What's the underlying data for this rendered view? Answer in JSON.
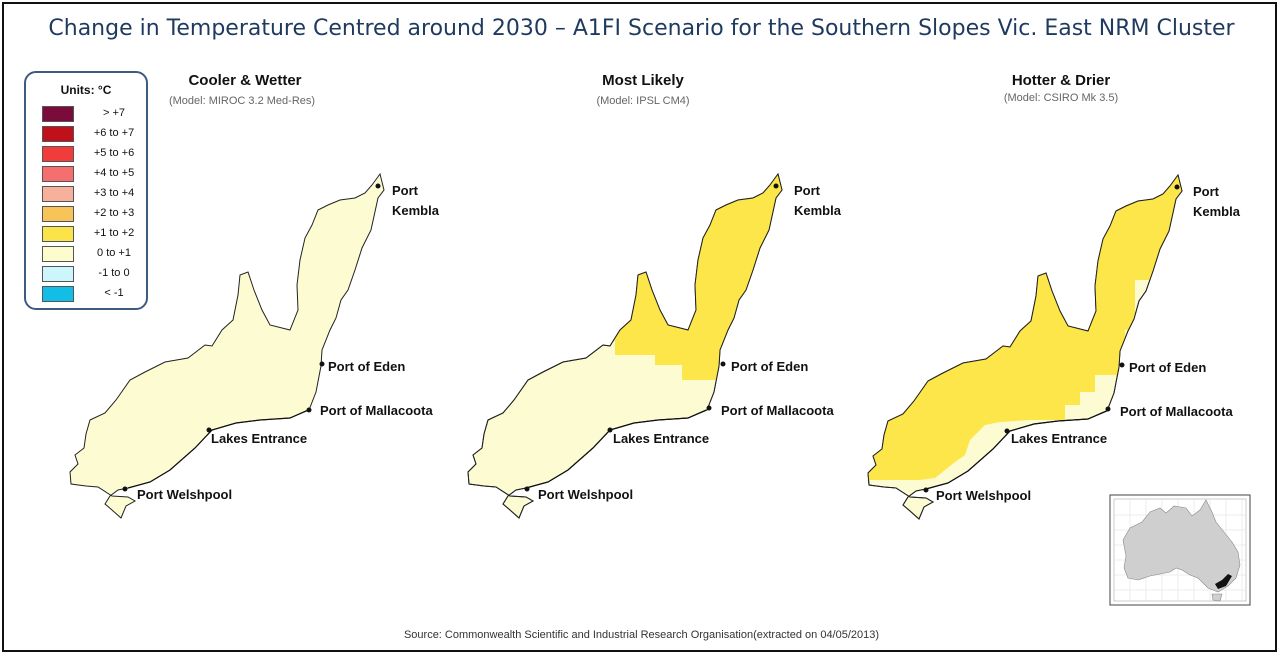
{
  "title": "Change in Temperature Centred around 2030 – A1FI Scenario for the Southern Slopes Vic. East NRM Cluster",
  "legend": {
    "title": "Units: °C",
    "items": [
      {
        "label": "> +7",
        "color": "#7a0b3a"
      },
      {
        "label": "+6 to +7",
        "color": "#c0111b"
      },
      {
        "label": "+5 to +6",
        "color": "#f23b3b"
      },
      {
        "label": "+4 to +5",
        "color": "#f56f6f"
      },
      {
        "label": "+3 to +4",
        "color": "#f7b09c"
      },
      {
        "label": "+2 to +3",
        "color": "#f7c45a"
      },
      {
        "label": "+1 to +2",
        "color": "#fbe34a"
      },
      {
        "label": "0 to +1",
        "color": "#fdfccd"
      },
      {
        "label": "-1 to 0",
        "color": "#ccf6fb"
      },
      {
        "label": "< -1",
        "color": "#12bde8"
      }
    ]
  },
  "panels": [
    {
      "title": "Cooler & Wetter",
      "model": "(Model: MIROC 3.2 Med-Res)",
      "warm_zone": "none"
    },
    {
      "title": "Most Likely",
      "model": "(Model: IPSL CM4)",
      "warm_zone": "north-east"
    },
    {
      "title": "Hotter & Drier",
      "model": "(Model: CSIRO Mk 3.5)",
      "warm_zone": "most"
    }
  ],
  "places": [
    "Port Kembla",
    "Port of Eden",
    "Port of Mallacoota",
    "Lakes Entrance",
    "Port Welshpool"
  ],
  "source": "Source: Commonwealth Scientific and Industrial Research Organisation(extracted on 04/05/2013)"
}
